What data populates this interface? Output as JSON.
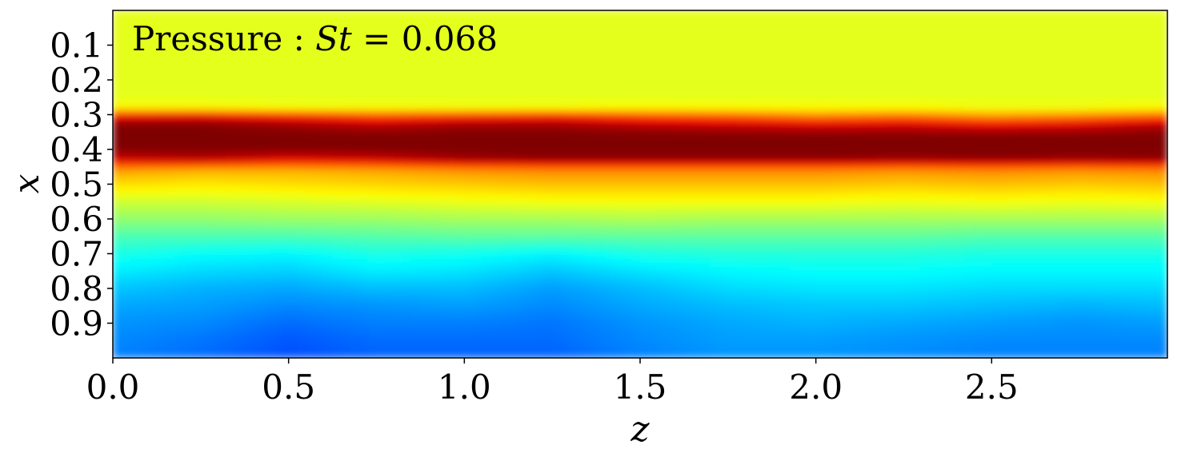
{
  "chart_data": {
    "type": "heatmap",
    "title": "",
    "annotation": {
      "prefix": "Pressure : ",
      "math_var": "St",
      "equals": " = ",
      "value": "0.068"
    },
    "xlabel": "z",
    "ylabel": "x",
    "xlim": [
      0.0,
      3.0
    ],
    "ylim": [
      0.0,
      1.0
    ],
    "y_inverted": true,
    "grid": false,
    "colormap": "jet",
    "colormap_stops": [
      {
        "t": 0.0,
        "color": "#00007f"
      },
      {
        "t": 0.125,
        "color": "#0000ff"
      },
      {
        "t": 0.375,
        "color": "#00ffff"
      },
      {
        "t": 0.625,
        "color": "#ffff00"
      },
      {
        "t": 0.875,
        "color": "#ff0000"
      },
      {
        "t": 1.0,
        "color": "#7f0000"
      }
    ],
    "x_ticks": [
      {
        "value": 0.0,
        "label": "0.0"
      },
      {
        "value": 0.5,
        "label": "0.5"
      },
      {
        "value": 1.0,
        "label": "1.0"
      },
      {
        "value": 1.5,
        "label": "1.5"
      },
      {
        "value": 2.0,
        "label": "2.0"
      },
      {
        "value": 2.5,
        "label": "2.5"
      }
    ],
    "y_ticks": [
      {
        "value": 0.1,
        "label": "0.1"
      },
      {
        "value": 0.2,
        "label": "0.2"
      },
      {
        "value": 0.3,
        "label": "0.3"
      },
      {
        "value": 0.4,
        "label": "0.4"
      },
      {
        "value": 0.5,
        "label": "0.5"
      },
      {
        "value": 0.6,
        "label": "0.6"
      },
      {
        "value": 0.7,
        "label": "0.7"
      },
      {
        "value": 0.8,
        "label": "0.8"
      },
      {
        "value": 0.9,
        "label": "0.9"
      }
    ],
    "z_grid": [
      0.0,
      0.25,
      0.5,
      0.75,
      1.0,
      1.25,
      1.5,
      1.75,
      2.0,
      2.25,
      2.5,
      2.75,
      3.0
    ],
    "x_grid": [
      0.0,
      0.05,
      0.1,
      0.15,
      0.2,
      0.25,
      0.28,
      0.3,
      0.33,
      0.36,
      0.4,
      0.43,
      0.46,
      0.5,
      0.55,
      0.6,
      0.65,
      0.7,
      0.75,
      0.8,
      0.85,
      0.9,
      0.95,
      1.0
    ],
    "values": [
      [
        0.6,
        0.6,
        0.6,
        0.6,
        0.6,
        0.6,
        0.6,
        0.6,
        0.6,
        0.6,
        0.6,
        0.6,
        0.6
      ],
      [
        0.6,
        0.6,
        0.6,
        0.6,
        0.6,
        0.6,
        0.6,
        0.6,
        0.6,
        0.6,
        0.6,
        0.6,
        0.6
      ],
      [
        0.6,
        0.6,
        0.6,
        0.6,
        0.6,
        0.6,
        0.6,
        0.6,
        0.6,
        0.6,
        0.6,
        0.6,
        0.6
      ],
      [
        0.6,
        0.6,
        0.6,
        0.6,
        0.6,
        0.6,
        0.6,
        0.6,
        0.6,
        0.6,
        0.6,
        0.6,
        0.6
      ],
      [
        0.6,
        0.6,
        0.6,
        0.6,
        0.6,
        0.6,
        0.6,
        0.6,
        0.6,
        0.6,
        0.6,
        0.6,
        0.6
      ],
      [
        0.6,
        0.6,
        0.6,
        0.6,
        0.6,
        0.6,
        0.6,
        0.6,
        0.6,
        0.6,
        0.6,
        0.6,
        0.6
      ],
      [
        0.62,
        0.62,
        0.61,
        0.61,
        0.61,
        0.61,
        0.62,
        0.62,
        0.62,
        0.62,
        0.61,
        0.61,
        0.62
      ],
      [
        0.85,
        0.86,
        0.82,
        0.78,
        0.8,
        0.82,
        0.78,
        0.76,
        0.72,
        0.74,
        0.7,
        0.72,
        0.76
      ],
      [
        1.0,
        1.0,
        0.97,
        0.94,
        0.97,
        0.97,
        0.94,
        0.92,
        0.9,
        0.91,
        0.88,
        0.9,
        0.95
      ],
      [
        1.0,
        1.0,
        1.0,
        1.0,
        1.0,
        1.0,
        1.0,
        1.0,
        1.0,
        1.0,
        1.0,
        1.0,
        1.0
      ],
      [
        1.0,
        1.0,
        1.0,
        1.0,
        1.0,
        1.0,
        1.0,
        1.0,
        1.0,
        1.0,
        1.0,
        1.0,
        1.0
      ],
      [
        0.92,
        0.94,
        0.9,
        0.92,
        0.97,
        0.99,
        0.99,
        0.99,
        0.99,
        0.98,
        0.99,
        0.98,
        0.99
      ],
      [
        0.72,
        0.7,
        0.7,
        0.71,
        0.73,
        0.74,
        0.74,
        0.74,
        0.74,
        0.73,
        0.74,
        0.73,
        0.74
      ],
      [
        0.66,
        0.65,
        0.66,
        0.67,
        0.68,
        0.69,
        0.69,
        0.69,
        0.69,
        0.68,
        0.69,
        0.68,
        0.69
      ],
      [
        0.58,
        0.58,
        0.59,
        0.6,
        0.61,
        0.62,
        0.62,
        0.62,
        0.62,
        0.61,
        0.62,
        0.61,
        0.62
      ],
      [
        0.52,
        0.52,
        0.53,
        0.53,
        0.54,
        0.54,
        0.55,
        0.54,
        0.54,
        0.54,
        0.54,
        0.54,
        0.54
      ],
      [
        0.45,
        0.45,
        0.45,
        0.46,
        0.47,
        0.47,
        0.47,
        0.47,
        0.47,
        0.47,
        0.46,
        0.46,
        0.46
      ],
      [
        0.4,
        0.38,
        0.37,
        0.4,
        0.39,
        0.37,
        0.4,
        0.41,
        0.41,
        0.41,
        0.4,
        0.4,
        0.4
      ],
      [
        0.36,
        0.34,
        0.33,
        0.36,
        0.35,
        0.32,
        0.35,
        0.37,
        0.38,
        0.38,
        0.37,
        0.37,
        0.37
      ],
      [
        0.32,
        0.3,
        0.29,
        0.31,
        0.31,
        0.28,
        0.31,
        0.34,
        0.35,
        0.35,
        0.34,
        0.34,
        0.34
      ],
      [
        0.29,
        0.28,
        0.26,
        0.27,
        0.28,
        0.26,
        0.29,
        0.31,
        0.32,
        0.32,
        0.31,
        0.3,
        0.31
      ],
      [
        0.27,
        0.26,
        0.23,
        0.25,
        0.25,
        0.24,
        0.27,
        0.29,
        0.3,
        0.29,
        0.28,
        0.27,
        0.28
      ],
      [
        0.26,
        0.24,
        0.21,
        0.23,
        0.23,
        0.23,
        0.26,
        0.28,
        0.28,
        0.27,
        0.26,
        0.26,
        0.26
      ],
      [
        0.25,
        0.23,
        0.2,
        0.22,
        0.22,
        0.22,
        0.25,
        0.27,
        0.27,
        0.26,
        0.25,
        0.25,
        0.25
      ]
    ]
  }
}
